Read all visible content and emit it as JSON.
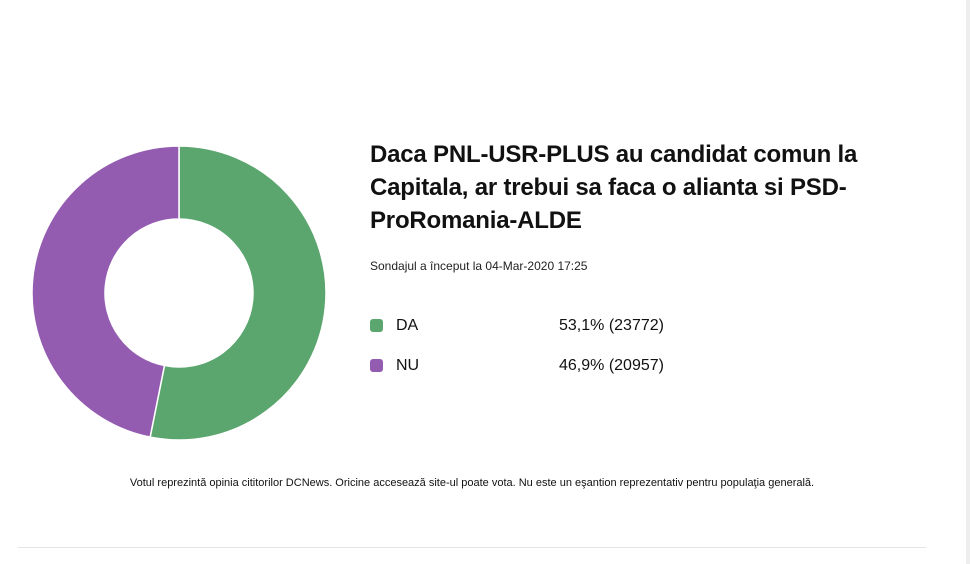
{
  "poll": {
    "title": "Daca PNL-USR-PLUS au candidat comun la Capitala, ar trebui sa faca o alianta si PSD-ProRomania-ALDE",
    "started": "Sondajul a început la 04-Mar-2020 17:25",
    "disclaimer": "Votul reprezintă opinia cititorilor DCNews. Oricine accesează site-ul poate vota. Nu este un eşantion reprezentativ pentru populaţia generală."
  },
  "chart_data": {
    "type": "pie",
    "title": "Daca PNL-USR-PLUS au candidat comun la Capitala, ar trebui sa faca o alianta si PSD-ProRomania-ALDE",
    "categories": [
      "DA",
      "NU"
    ],
    "values": [
      23772,
      20957
    ],
    "percent_labels": [
      "53,1%",
      "46,9%"
    ],
    "value_labels": [
      "53,1% (23772)",
      "46,9% (20957)"
    ],
    "colors": [
      "#5ba56e",
      "#945cb0"
    ],
    "donut": true,
    "legend_position": "right"
  }
}
